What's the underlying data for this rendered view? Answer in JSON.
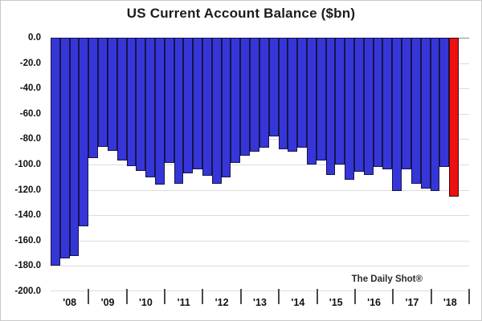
{
  "title": "US Current Account Balance ($bn)",
  "watermark": "The Daily Shot®",
  "colors": {
    "bar": "#3636d8",
    "bar_border": "#14144a",
    "highlight": "#ee1111",
    "highlight_border": "#3a0808",
    "grid": "#dcdcdc",
    "zero_line": "#8f8f8f",
    "text": "#111111"
  },
  "chart_data": {
    "type": "bar",
    "title": "US Current Account Balance ($bn)",
    "ylabel": "",
    "xlabel": "",
    "unit": "$bn",
    "ylim": [
      -200,
      0
    ],
    "ytick_step": 20,
    "ytick_labels": [
      "0.0",
      "-20.0",
      "-40.0",
      "-60.0",
      "-80.0",
      "-100.0",
      "-120.0",
      "-140.0",
      "-160.0",
      "-180.0",
      "-200.0"
    ],
    "year_labels": [
      "'08",
      "'09",
      "'10",
      "'11",
      "'12",
      "'13",
      "'14",
      "'15",
      "'16",
      "'17",
      "'18"
    ],
    "x": [
      "2008Q1",
      "2008Q2",
      "2008Q3",
      "2008Q4",
      "2009Q1",
      "2009Q2",
      "2009Q3",
      "2009Q4",
      "2010Q1",
      "2010Q2",
      "2010Q3",
      "2010Q4",
      "2011Q1",
      "2011Q2",
      "2011Q3",
      "2011Q4",
      "2012Q1",
      "2012Q2",
      "2012Q3",
      "2012Q4",
      "2013Q1",
      "2013Q2",
      "2013Q3",
      "2013Q4",
      "2014Q1",
      "2014Q2",
      "2014Q3",
      "2014Q4",
      "2015Q1",
      "2015Q2",
      "2015Q3",
      "2015Q4",
      "2016Q1",
      "2016Q2",
      "2016Q3",
      "2016Q4",
      "2017Q1",
      "2017Q2",
      "2017Q3",
      "2017Q4",
      "2018Q1",
      "2018Q2",
      "2018Q3"
    ],
    "values": [
      -180,
      -174,
      -172,
      -149,
      -95,
      -86,
      -89,
      -97,
      -101,
      -105,
      -110,
      -116,
      -99,
      -115,
      -107,
      -104,
      -109,
      -115,
      -110,
      -99,
      -93,
      -90,
      -87,
      -78,
      -88,
      -90,
      -87,
      -100,
      -97,
      -108,
      -100,
      -112,
      -106,
      -108,
      -102,
      -104,
      -121,
      -104,
      -115,
      -119,
      -121,
      -102,
      -125
    ],
    "highlight_index": 42,
    "grid": true,
    "legend": false,
    "annotation": "The Daily Shot®",
    "annotation_position": "bottom-right"
  }
}
